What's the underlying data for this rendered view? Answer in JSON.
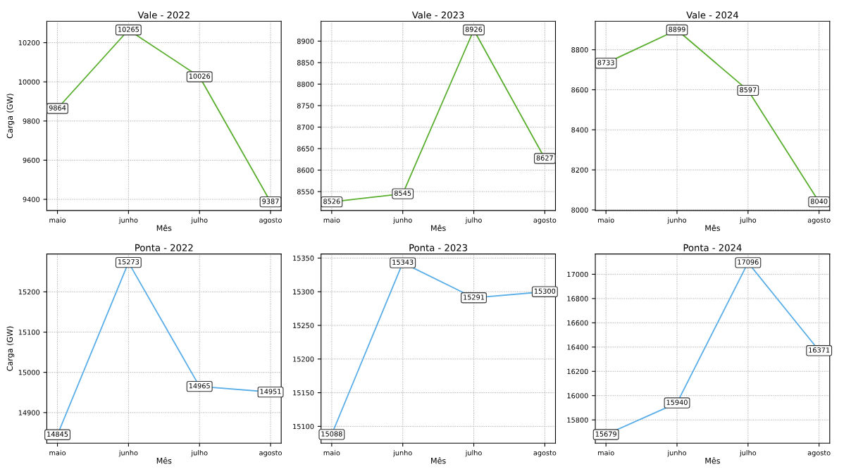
{
  "chart_data": [
    {
      "type": "line",
      "title": "Vale - 2022",
      "xlabel": "Mês",
      "ylabel": "Carga (GW)",
      "categories": [
        "maio",
        "junho",
        "julho",
        "agosto"
      ],
      "series": [
        {
          "color": "#5aae2e",
          "values": [
            9864,
            10265,
            10026,
            9387
          ]
        }
      ],
      "ylim": [
        9343,
        10309
      ],
      "yticks": [
        9400,
        9600,
        9800,
        10000,
        10200
      ],
      "grid": true,
      "data_labels": true,
      "marker": "square"
    },
    {
      "type": "line",
      "title": "Vale - 2023",
      "xlabel": "Mês",
      "categories": [
        "maio",
        "junho",
        "julho",
        "agosto"
      ],
      "series": [
        {
          "color": "#5aae2e",
          "values": [
            8526,
            8545,
            8926,
            8627
          ]
        }
      ],
      "ylim": [
        8506,
        8946
      ],
      "yticks": [
        8550,
        8600,
        8650,
        8700,
        8750,
        8800,
        8850,
        8900
      ],
      "grid": true,
      "data_labels": true,
      "marker": "square"
    },
    {
      "type": "line",
      "title": "Vale - 2024",
      "xlabel": "Mês",
      "categories": [
        "maio",
        "junho",
        "julho",
        "agosto"
      ],
      "series": [
        {
          "color": "#5aae2e",
          "values": [
            8733,
            8899,
            8597,
            8040
          ]
        }
      ],
      "ylim": [
        7997,
        8942
      ],
      "yticks": [
        8000,
        8200,
        8400,
        8600,
        8800
      ],
      "grid": true,
      "data_labels": true,
      "marker": "square"
    },
    {
      "type": "line",
      "title": "Ponta - 2022",
      "xlabel": "Mês",
      "ylabel": "Carga (GW)",
      "categories": [
        "maio",
        "junho",
        "julho",
        "agosto"
      ],
      "series": [
        {
          "color": "#5aaee8",
          "values": [
            14845,
            15273,
            14965,
            14951
          ]
        }
      ],
      "ylim": [
        14824,
        15294
      ],
      "yticks": [
        14900,
        15000,
        15100,
        15200
      ],
      "grid": true,
      "data_labels": true,
      "marker": "square"
    },
    {
      "type": "line",
      "title": "Ponta - 2023",
      "xlabel": "Mês",
      "categories": [
        "maio",
        "junho",
        "julho",
        "agosto"
      ],
      "series": [
        {
          "color": "#5aaee8",
          "values": [
            15088,
            15343,
            15291,
            15300
          ]
        }
      ],
      "ylim": [
        15075,
        15356
      ],
      "yticks": [
        15100,
        15150,
        15200,
        15250,
        15300,
        15350
      ],
      "grid": true,
      "data_labels": true,
      "marker": "square"
    },
    {
      "type": "line",
      "title": "Ponta - 2024",
      "xlabel": "Mês",
      "categories": [
        "maio",
        "junho",
        "julho",
        "agosto"
      ],
      "series": [
        {
          "color": "#5aaee8",
          "values": [
            15679,
            15940,
            17096,
            16371
          ]
        }
      ],
      "ylim": [
        15608,
        17167
      ],
      "yticks": [
        15800,
        16000,
        16200,
        16400,
        16600,
        16800,
        17000
      ],
      "grid": true,
      "data_labels": true,
      "marker": "square"
    }
  ]
}
